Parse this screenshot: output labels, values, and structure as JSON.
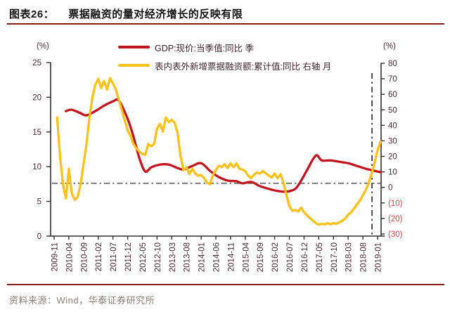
{
  "title": {
    "index": "图表26：",
    "text": "票据融资的量对经济增长的反映有限"
  },
  "legend": [
    {
      "label": "GDP:现价:当季值:同比 季",
      "color": "#c3151e"
    },
    {
      "label": "表内表外新增票据融资额:累计值:同比 右轴 月",
      "color": "#fdc11a"
    }
  ],
  "source": "资料来源：Wind，华泰证券研究所",
  "colors": {
    "rule": "#8e1c1c",
    "axis": "#332e2e",
    "tick_label": "#4e2b3a",
    "neg_tick_label": "#e24646",
    "refline": "#333333"
  },
  "chart_data": {
    "type": "line",
    "left_axis": {
      "unit": "(%)",
      "range": [
        0,
        25
      ],
      "tick_labels": [
        "25",
        "20",
        "15",
        "10",
        "5",
        "0"
      ]
    },
    "right_axis": {
      "unit": "(%)",
      "range": [
        -30,
        80
      ],
      "tick_labels": [
        "80",
        "70",
        "60",
        "50",
        "40",
        "30",
        "20",
        "10",
        "0",
        "(10)",
        "(20)",
        "(30)"
      ]
    },
    "x_axis": {
      "unit": "month",
      "months_per_tick": 5,
      "tick_labels": [
        "2009-11",
        "2010-04",
        "2010-09",
        "2011-02",
        "2011-07",
        "2011-12",
        "2012-05",
        "2012-10",
        "2013-03",
        "2013-08",
        "2014-01",
        "2014-06",
        "2014-11",
        "2015-04",
        "2015-09",
        "2016-02",
        "2016-07",
        "2016-12",
        "2017-05",
        "2017-10",
        "2018-03",
        "2018-08",
        "2019-01"
      ]
    },
    "reflines": {
      "horizontal_left_value": 7.6,
      "vertical_month": 108.1
    },
    "series": [
      {
        "name": "GDP:现价:当季值:同比 季",
        "axis": "left",
        "frequency": "quarterly",
        "color": "#c3151e",
        "points": [
          [
            4,
            18.0
          ],
          [
            6,
            18.2
          ],
          [
            9,
            17.7
          ],
          [
            11,
            17.4
          ],
          [
            14,
            18.0
          ],
          [
            17,
            18.8
          ],
          [
            20,
            19.4
          ],
          [
            22,
            19.5
          ],
          [
            25,
            16.9
          ],
          [
            27,
            14.3
          ],
          [
            29,
            11.2
          ],
          [
            31,
            9.3
          ],
          [
            33,
            9.9
          ],
          [
            36,
            10.3
          ],
          [
            39,
            10.3
          ],
          [
            42,
            9.8
          ],
          [
            44,
            9.6
          ],
          [
            47,
            10.1
          ],
          [
            50,
            10.5
          ],
          [
            53,
            9.4
          ],
          [
            56,
            8.5
          ],
          [
            59,
            8.0
          ],
          [
            62,
            7.9
          ],
          [
            64,
            7.6
          ],
          [
            67,
            7.8
          ],
          [
            70,
            7.2
          ],
          [
            73,
            6.8
          ],
          [
            76,
            6.5
          ],
          [
            79,
            6.4
          ],
          [
            82,
            6.8
          ],
          [
            84,
            8.0
          ],
          [
            86,
            9.5
          ],
          [
            89,
            11.6
          ],
          [
            91,
            10.9
          ],
          [
            94,
            10.9
          ],
          [
            97,
            10.7
          ],
          [
            100,
            10.5
          ],
          [
            103,
            10.1
          ],
          [
            106,
            9.7
          ],
          [
            108,
            9.5
          ],
          [
            111,
            9.2
          ]
        ]
      },
      {
        "name": "表内表外新增票据融资额:累计值:同比 右轴 月",
        "axis": "right",
        "frequency": "monthly",
        "color": "#fdc11a",
        "points": [
          [
            1,
            45
          ],
          [
            2,
            20
          ],
          [
            3,
            2
          ],
          [
            4,
            -7
          ],
          [
            5,
            12
          ],
          [
            6,
            -4
          ],
          [
            7,
            -8
          ],
          [
            8,
            -6
          ],
          [
            9,
            2
          ],
          [
            10,
            15
          ],
          [
            11,
            28
          ],
          [
            12,
            45
          ],
          [
            13,
            58
          ],
          [
            14,
            66
          ],
          [
            15,
            70
          ],
          [
            16,
            64
          ],
          [
            17,
            68.5
          ],
          [
            18,
            63
          ],
          [
            19,
            70.5
          ],
          [
            20,
            67
          ],
          [
            21,
            63
          ],
          [
            22,
            56.5
          ],
          [
            23,
            50
          ],
          [
            24,
            43
          ],
          [
            25,
            37
          ],
          [
            26,
            33
          ],
          [
            27,
            28
          ],
          [
            28,
            25
          ],
          [
            29,
            23
          ],
          [
            30,
            21.5
          ],
          [
            31,
            21
          ],
          [
            32,
            28
          ],
          [
            33,
            26.5
          ],
          [
            34,
            28
          ],
          [
            35,
            38
          ],
          [
            36,
            41
          ],
          [
            37,
            36
          ],
          [
            38,
            45
          ],
          [
            39,
            42
          ],
          [
            40,
            43.5
          ],
          [
            41,
            41.5
          ],
          [
            42,
            35
          ],
          [
            43,
            20
          ],
          [
            44,
            11
          ],
          [
            45,
            13
          ],
          [
            46,
            8.5
          ],
          [
            47,
            12
          ],
          [
            48,
            9
          ],
          [
            49,
            7.5
          ],
          [
            50,
            8
          ],
          [
            51,
            6
          ],
          [
            52,
            3
          ],
          [
            53,
            2
          ],
          [
            54,
            8
          ],
          [
            55,
            11
          ],
          [
            56,
            14
          ],
          [
            57,
            13
          ],
          [
            58,
            15
          ],
          [
            59,
            12.5
          ],
          [
            60,
            15.5
          ],
          [
            61,
            13
          ],
          [
            62,
            15.5
          ],
          [
            63,
            12
          ],
          [
            64,
            11.5
          ],
          [
            65,
            10.5
          ],
          [
            66,
            7.5
          ],
          [
            67,
            6
          ],
          [
            68,
            8.2
          ],
          [
            69,
            9.6
          ],
          [
            70,
            8.9
          ],
          [
            71,
            10.5
          ],
          [
            72,
            9
          ],
          [
            73,
            7.6
          ],
          [
            74,
            6.4
          ],
          [
            75,
            9
          ],
          [
            76,
            6
          ],
          [
            77,
            8.5
          ],
          [
            78,
            3
          ],
          [
            79,
            -5
          ],
          [
            80,
            -12
          ],
          [
            81,
            -15
          ],
          [
            82,
            -14.5
          ],
          [
            83,
            -15.5
          ],
          [
            84,
            -13
          ],
          [
            85,
            -16
          ],
          [
            86,
            -18
          ],
          [
            87,
            -19.7
          ],
          [
            88,
            -21.5
          ],
          [
            89,
            -23
          ],
          [
            90,
            -24
          ],
          [
            91,
            -23.5
          ],
          [
            92,
            -23.8
          ],
          [
            93,
            -23
          ],
          [
            94,
            -23.8
          ],
          [
            95,
            -23
          ],
          [
            96,
            -23.5
          ],
          [
            97,
            -22.5
          ],
          [
            98,
            -21.5
          ],
          [
            99,
            -20
          ],
          [
            100,
            -17.5
          ],
          [
            101,
            -16
          ],
          [
            102,
            -13.5
          ],
          [
            103,
            -11
          ],
          [
            104,
            -8.5
          ],
          [
            105,
            -5
          ],
          [
            106,
            -1.5
          ],
          [
            107,
            3
          ],
          [
            108,
            9
          ],
          [
            109,
            16
          ],
          [
            110,
            24
          ],
          [
            111,
            29.5
          ]
        ]
      }
    ]
  }
}
